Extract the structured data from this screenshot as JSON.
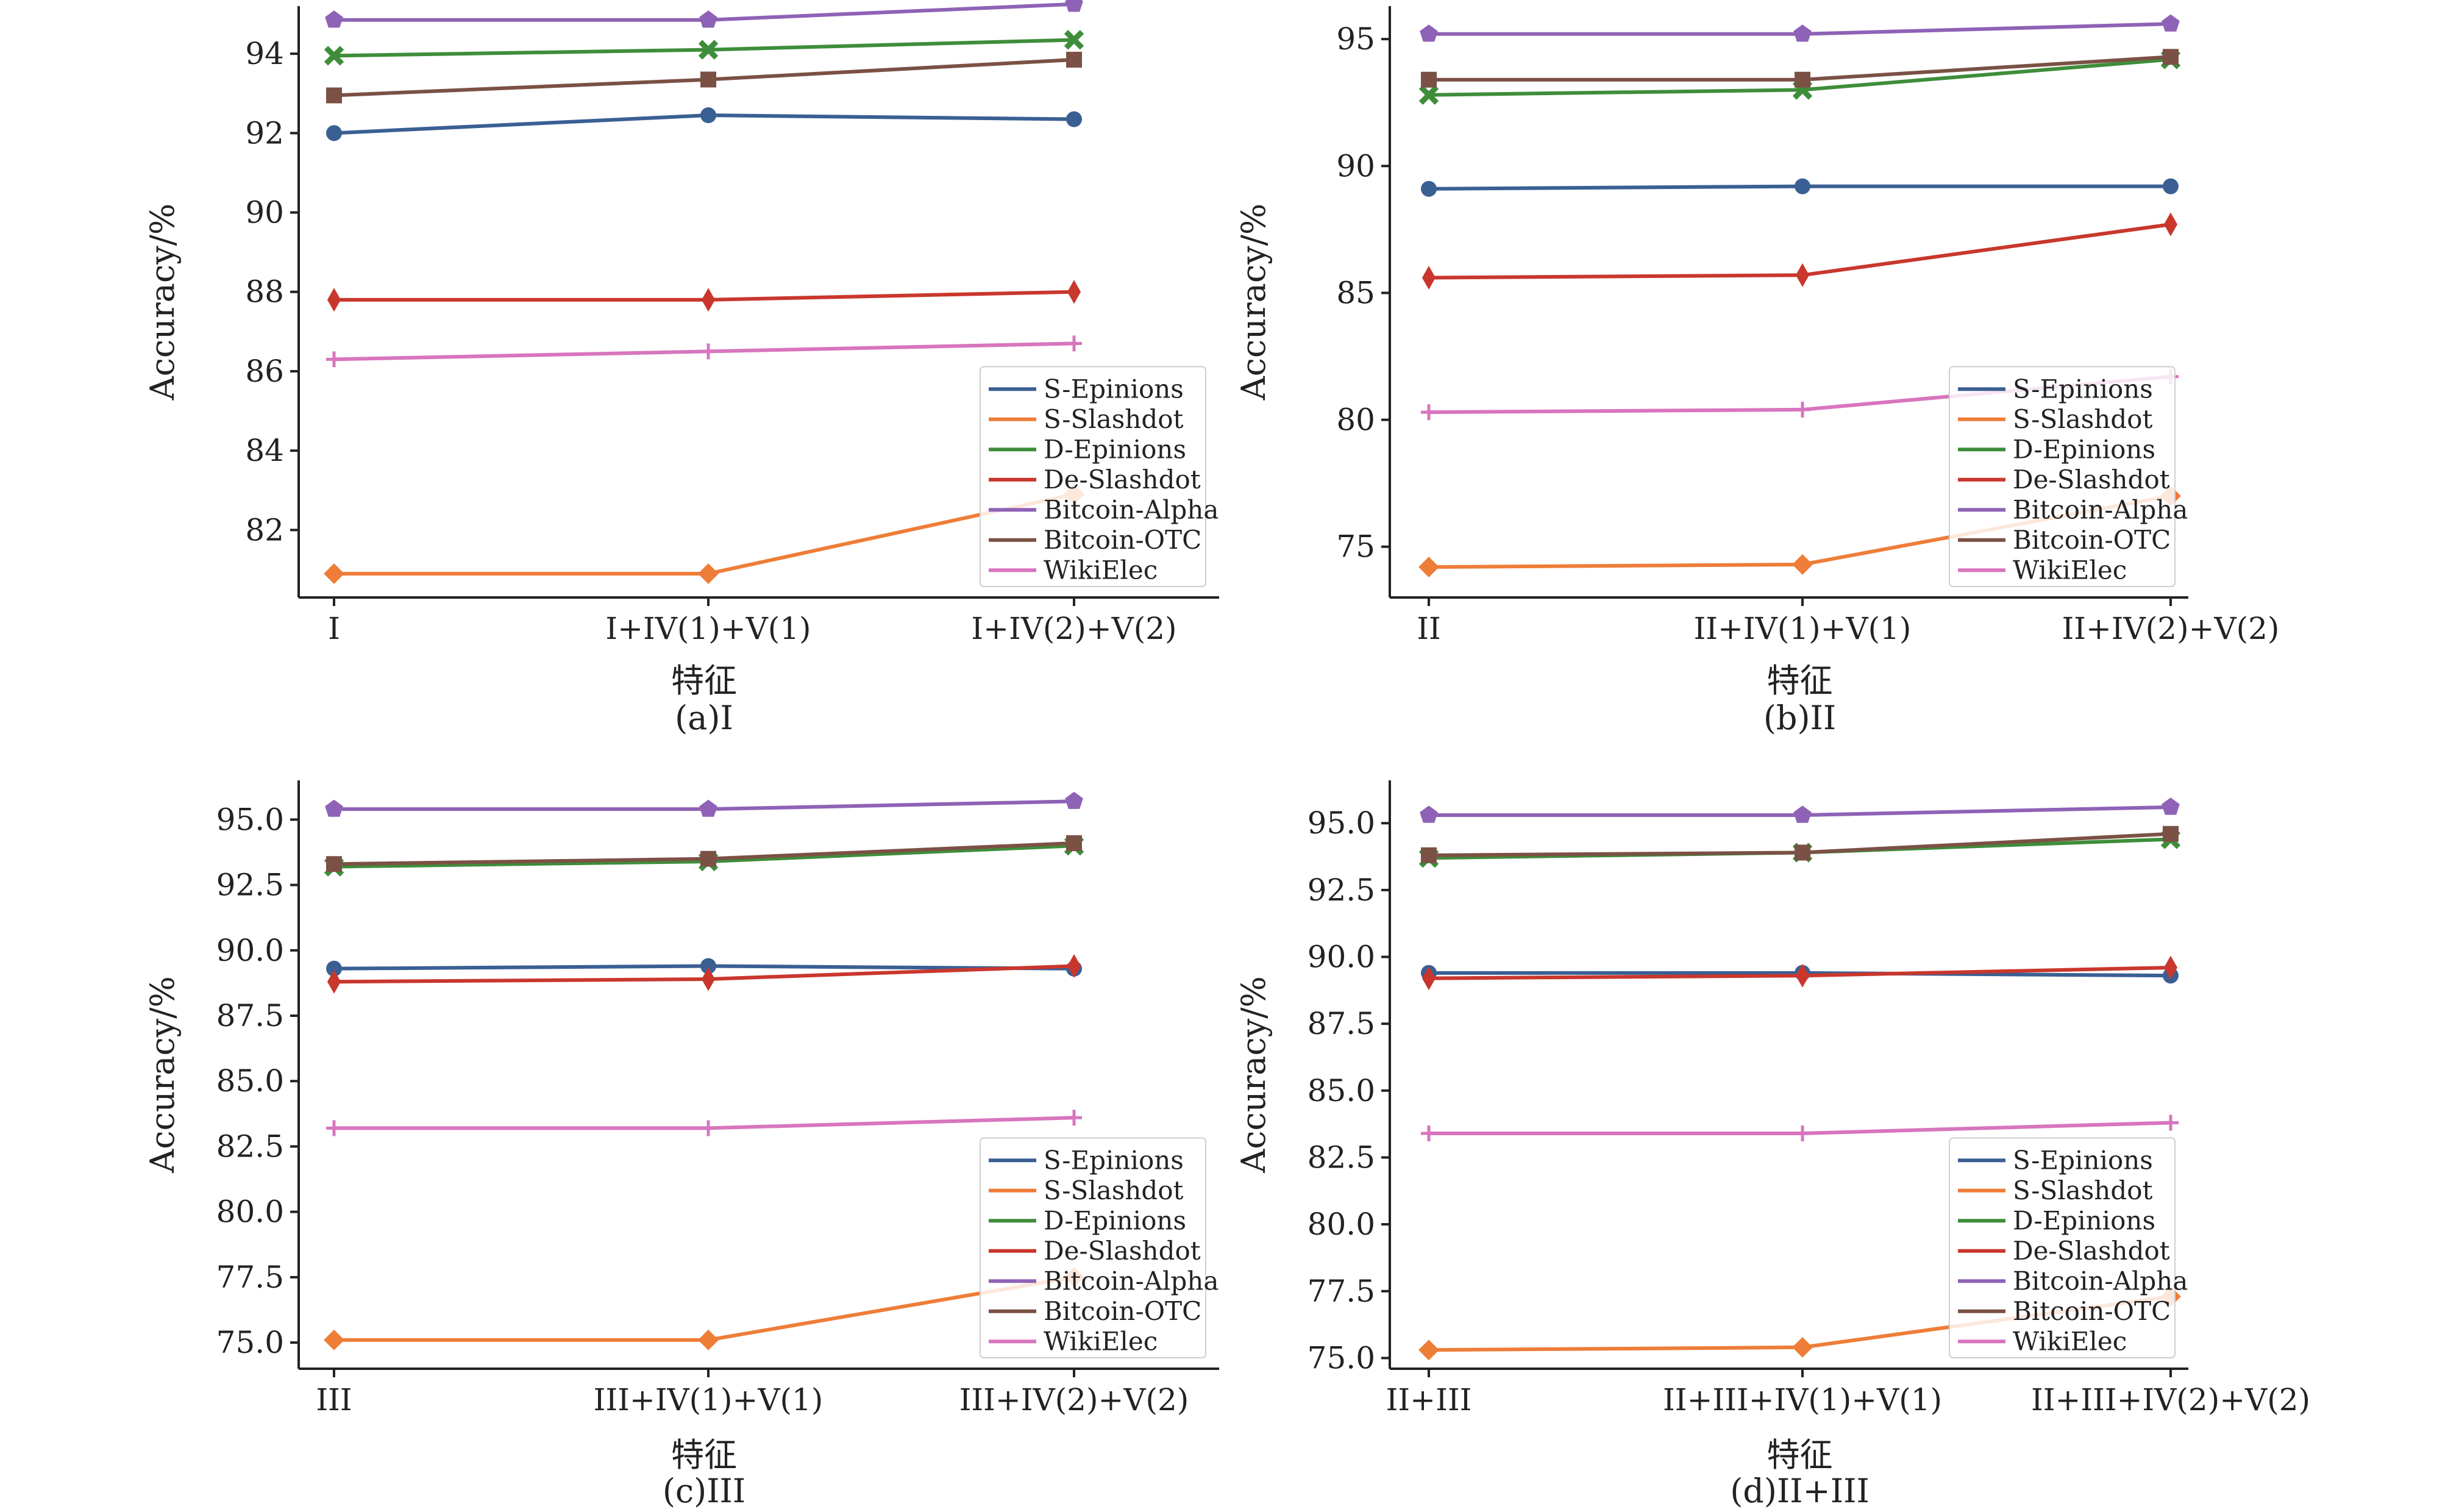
{
  "colors": {
    "S-Epinions": "#3a5f93",
    "S-Slashdot": "#ee7d38",
    "D-Epinions": "#3e8d3a",
    "De-Slashdot": "#c9372c",
    "Bitcoin-Alpha": "#8e62b6",
    "Bitcoin-OTC": "#7b5145",
    "WikiElec": "#d875be"
  },
  "markers": {
    "S-Epinions": "circle",
    "S-Slashdot": "diamond",
    "D-Epinions": "x",
    "De-Slashdot": "thin-diamond",
    "Bitcoin-Alpha": "pentagon",
    "Bitcoin-OTC": "square",
    "WikiElec": "plus"
  },
  "chart_data": [
    {
      "type": "line",
      "caption": "(a)I",
      "xlabel": "特征",
      "ylabel": "Accuracy/%",
      "categories": [
        "I",
        "I+IV(1)+V(1)",
        "I+IV(2)+V(2)"
      ],
      "ylim": [
        80.3,
        95.2
      ],
      "yticks": [
        "82",
        "84",
        "86",
        "88",
        "90",
        "92",
        "94"
      ],
      "legend_position": "lower-right",
      "series": [
        {
          "name": "S-Epinions",
          "values": [
            92.0,
            92.45,
            92.35
          ]
        },
        {
          "name": "S-Slashdot",
          "values": [
            80.9,
            80.9,
            82.9
          ]
        },
        {
          "name": "D-Epinions",
          "values": [
            93.95,
            94.1,
            94.35
          ]
        },
        {
          "name": "De-Slashdot",
          "values": [
            87.8,
            87.8,
            88.0
          ]
        },
        {
          "name": "Bitcoin-Alpha",
          "values": [
            94.85,
            94.85,
            95.25
          ]
        },
        {
          "name": "Bitcoin-OTC",
          "values": [
            92.95,
            93.35,
            93.85
          ]
        },
        {
          "name": "WikiElec",
          "values": [
            86.3,
            86.5,
            86.7
          ]
        }
      ]
    },
    {
      "type": "line",
      "caption": "(b)II",
      "xlabel": "特征",
      "ylabel": "Accuracy/%",
      "categories": [
        "II",
        "II+IV(1)+V(1)",
        "II+IV(2)+V(2)"
      ],
      "ylim": [
        73.0,
        96.3
      ],
      "yticks": [
        "75",
        "80",
        "85",
        "90",
        "95"
      ],
      "legend_position": "lower-right",
      "series": [
        {
          "name": "S-Epinions",
          "values": [
            89.1,
            89.2,
            89.2
          ]
        },
        {
          "name": "S-Slashdot",
          "values": [
            74.2,
            74.3,
            77.0
          ]
        },
        {
          "name": "D-Epinions",
          "values": [
            92.8,
            93.0,
            94.2
          ]
        },
        {
          "name": "De-Slashdot",
          "values": [
            85.6,
            85.7,
            87.7
          ]
        },
        {
          "name": "Bitcoin-Alpha",
          "values": [
            95.2,
            95.2,
            95.6
          ]
        },
        {
          "name": "Bitcoin-OTC",
          "values": [
            93.4,
            93.4,
            94.3
          ]
        },
        {
          "name": "WikiElec",
          "values": [
            80.3,
            80.4,
            81.7
          ]
        }
      ]
    },
    {
      "type": "line",
      "caption": "(c)III",
      "xlabel": "特征",
      "ylabel": "Accuracy/%",
      "categories": [
        "III",
        "III+IV(1)+V(1)",
        "III+IV(2)+V(2)"
      ],
      "ylim": [
        74.0,
        96.5
      ],
      "yticks": [
        "75.0",
        "77.5",
        "80.0",
        "82.5",
        "85.0",
        "87.5",
        "90.0",
        "92.5",
        "95.0"
      ],
      "legend_position": "lower-right",
      "series": [
        {
          "name": "S-Epinions",
          "values": [
            89.3,
            89.4,
            89.3
          ]
        },
        {
          "name": "S-Slashdot",
          "values": [
            75.1,
            75.1,
            77.5
          ]
        },
        {
          "name": "D-Epinions",
          "values": [
            93.2,
            93.4,
            94.0
          ]
        },
        {
          "name": "De-Slashdot",
          "values": [
            88.8,
            88.9,
            89.4
          ]
        },
        {
          "name": "Bitcoin-Alpha",
          "values": [
            95.4,
            95.4,
            95.7
          ]
        },
        {
          "name": "Bitcoin-OTC",
          "values": [
            93.3,
            93.5,
            94.1
          ]
        },
        {
          "name": "WikiElec",
          "values": [
            83.2,
            83.2,
            83.6
          ]
        }
      ]
    },
    {
      "type": "line",
      "caption": "(d)II+III",
      "xlabel": "特征",
      "ylabel": "Accuracy/%",
      "categories": [
        "II+III",
        "II+III+IV(1)+V(1)",
        "II+III+IV(2)+V(2)"
      ],
      "ylim": [
        74.6,
        96.6
      ],
      "yticks": [
        "75.0",
        "77.5",
        "80.0",
        "82.5",
        "85.0",
        "87.5",
        "90.0",
        "92.5",
        "95.0"
      ],
      "legend_position": "lower-right",
      "series": [
        {
          "name": "S-Epinions",
          "values": [
            89.4,
            89.4,
            89.3
          ]
        },
        {
          "name": "S-Slashdot",
          "values": [
            75.3,
            75.4,
            77.3
          ]
        },
        {
          "name": "D-Epinions",
          "values": [
            93.7,
            93.9,
            94.4
          ]
        },
        {
          "name": "De-Slashdot",
          "values": [
            89.2,
            89.3,
            89.6
          ]
        },
        {
          "name": "Bitcoin-Alpha",
          "values": [
            95.3,
            95.3,
            95.6
          ]
        },
        {
          "name": "Bitcoin-OTC",
          "values": [
            93.8,
            93.9,
            94.6
          ]
        },
        {
          "name": "WikiElec",
          "values": [
            83.4,
            83.4,
            83.8
          ]
        }
      ]
    }
  ]
}
